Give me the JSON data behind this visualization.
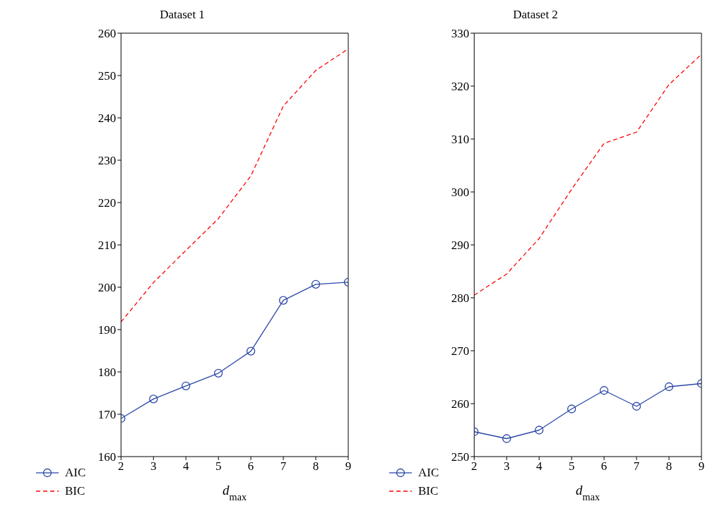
{
  "chart_data": [
    {
      "type": "line",
      "title": "Dataset 1",
      "xlabel": "d$_{max}$",
      "x": [
        2,
        3,
        4,
        5,
        6,
        7,
        8,
        9
      ],
      "xlim": [
        2,
        9
      ],
      "xticks": [
        2,
        3,
        4,
        5,
        6,
        7,
        8,
        9
      ],
      "ylim": [
        160,
        260
      ],
      "yticks": [
        160,
        170,
        180,
        190,
        200,
        210,
        220,
        230,
        240,
        250,
        260
      ],
      "grid": false,
      "legend": "bottom left",
      "series": [
        {
          "name": "AIC",
          "color": "#2a47a8",
          "marker": "circle",
          "line_style": "solid",
          "values": [
            169.0,
            173.6,
            176.7,
            179.7,
            184.9,
            196.9,
            200.7,
            201.2
          ]
        },
        {
          "name": "BIC",
          "color": "#ff0000",
          "marker": "none",
          "line_style": "dashed",
          "values": [
            191.8,
            201.1,
            208.7,
            216.2,
            226.3,
            242.8,
            251.2,
            256.3
          ]
        }
      ]
    },
    {
      "type": "line",
      "title": "Dataset 2",
      "xlabel": "d$_{max}$",
      "x": [
        2,
        3,
        4,
        5,
        6,
        7,
        8,
        9
      ],
      "xlim": [
        2,
        9
      ],
      "xticks": [
        2,
        3,
        4,
        5,
        6,
        7,
        8,
        9
      ],
      "ylim": [
        250,
        330
      ],
      "yticks": [
        250,
        260,
        270,
        280,
        290,
        300,
        310,
        320,
        330
      ],
      "grid": false,
      "legend": "bottom left",
      "series": [
        {
          "name": "AIC",
          "color": "#2a47a8",
          "marker": "circle",
          "line_style": "solid",
          "values": [
            254.7,
            253.4,
            255.0,
            259.0,
            262.5,
            259.5,
            263.2,
            263.8
          ]
        },
        {
          "name": "BIC",
          "color": "#ff0000",
          "marker": "none",
          "line_style": "dashed",
          "values": [
            280.5,
            284.5,
            291.2,
            300.5,
            309.2,
            311.3,
            320.3,
            326.0
          ]
        }
      ]
    }
  ]
}
